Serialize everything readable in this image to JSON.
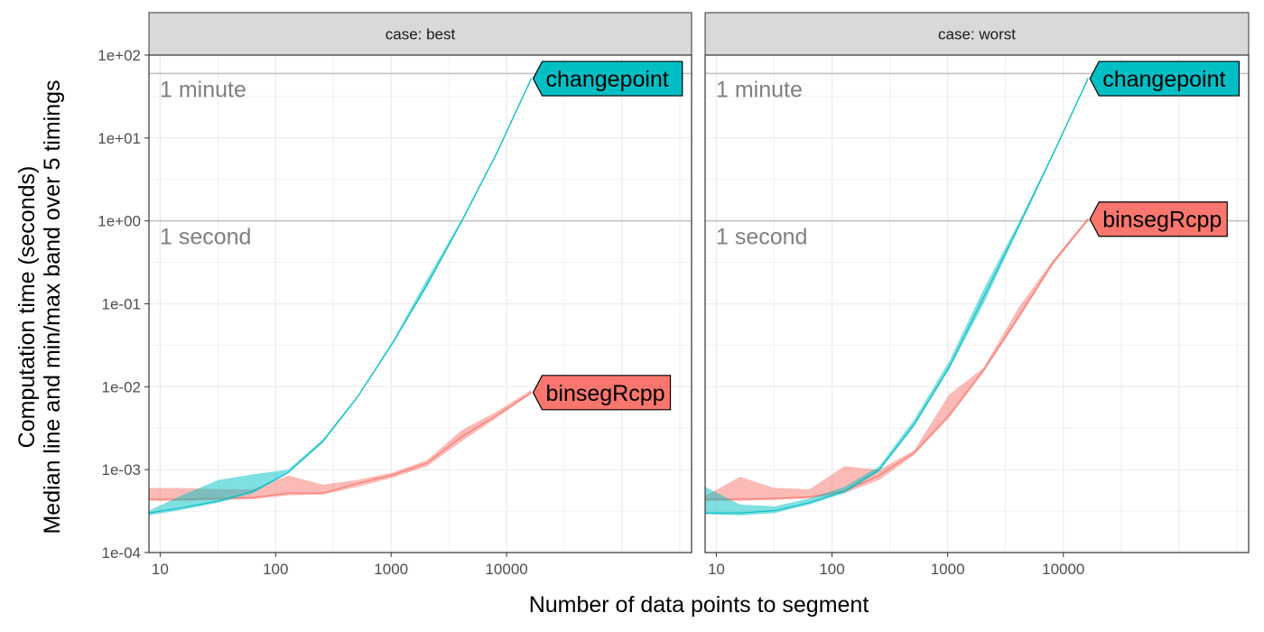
{
  "chart_data": {
    "type": "line",
    "x_scale": "log",
    "y_scale": "log",
    "xlabel": "Number of data points to segment",
    "ylabel_lines": [
      "Computation time (seconds)",
      "Median line and min/max band over 5 timings"
    ],
    "x_ticks": [
      {
        "value": 10,
        "label": "10"
      },
      {
        "value": 100,
        "label": "100"
      },
      {
        "value": 1000,
        "label": "1000"
      },
      {
        "value": 10000,
        "label": "10000"
      }
    ],
    "y_ticks": [
      {
        "value": 0.0001,
        "label": "1e-04"
      },
      {
        "value": 0.001,
        "label": "1e-03"
      },
      {
        "value": 0.01,
        "label": "1e-02"
      },
      {
        "value": 0.1,
        "label": "1e-01"
      },
      {
        "value": 1,
        "label": "1e+00"
      },
      {
        "value": 10,
        "label": "1e+01"
      },
      {
        "value": 100,
        "label": "1e+02"
      }
    ],
    "xlim": [
      8,
      400000
    ],
    "ylim": [
      0.0001,
      100
    ],
    "reference_lines": [
      {
        "value": 60,
        "label": "1 minute"
      },
      {
        "value": 1,
        "label": "1 second"
      }
    ],
    "grid": true,
    "colors": {
      "changepoint": "#00BFC4",
      "binsegRcpp": "#F8766D"
    },
    "panels": [
      {
        "strip_label": "case: best",
        "series": [
          {
            "name": "binsegRcpp",
            "x": [
              8,
              16,
              32,
              64,
              128,
              256,
              512,
              1024,
              2048,
              4096,
              8192,
              16384
            ],
            "median": [
              0.00044,
              0.00044,
              0.00045,
              0.00046,
              0.00052,
              0.00052,
              0.00068,
              0.00086,
              0.0012,
              0.0025,
              0.0045,
              0.0085
            ],
            "min": [
              0.00042,
              0.00042,
              0.00043,
              0.00044,
              0.00049,
              0.0005,
              0.00062,
              0.0008,
              0.0011,
              0.0022,
              0.0042,
              0.0082
            ],
            "max": [
              0.0006,
              0.0006,
              0.00058,
              0.00058,
              0.00085,
              0.00066,
              0.00075,
              0.00092,
              0.0013,
              0.003,
              0.005,
              0.0092
            ]
          },
          {
            "name": "changepoint",
            "x": [
              8,
              16,
              32,
              64,
              128,
              256,
              512,
              1024,
              2048,
              4096,
              8192,
              16384
            ],
            "median": [
              0.0003,
              0.00035,
              0.00042,
              0.00055,
              0.00092,
              0.0022,
              0.0075,
              0.033,
              0.17,
              1,
              6.5,
              52
            ],
            "min": [
              0.00028,
              0.00033,
              0.0004,
              0.00052,
              0.0009,
              0.0021,
              0.0073,
              0.032,
              0.16,
              0.95,
              6.2,
              50
            ],
            "max": [
              0.00032,
              0.0005,
              0.00075,
              0.00088,
              0.001,
              0.0023,
              0.0078,
              0.035,
              0.2,
              1.05,
              6.8,
              55
            ]
          }
        ]
      },
      {
        "strip_label": "case: worst",
        "series": [
          {
            "name": "binsegRcpp",
            "x": [
              8,
              16,
              32,
              64,
              128,
              256,
              512,
              1024,
              2048,
              4096,
              8192,
              16384
            ],
            "median": [
              0.00044,
              0.00044,
              0.00045,
              0.00047,
              0.00055,
              0.00085,
              0.0016,
              0.0045,
              0.016,
              0.07,
              0.32,
              1.05
            ],
            "min": [
              0.00042,
              0.00042,
              0.00043,
              0.00045,
              0.00052,
              0.00075,
              0.0015,
              0.0042,
              0.015,
              0.065,
              0.3,
              1.0
            ],
            "max": [
              0.00048,
              0.00082,
              0.0006,
              0.00058,
              0.0011,
              0.001,
              0.0017,
              0.008,
              0.017,
              0.09,
              0.34,
              1.1
            ]
          },
          {
            "name": "changepoint",
            "x": [
              8,
              16,
              32,
              64,
              128,
              256,
              512,
              1024,
              2048,
              4096,
              8192,
              16384
            ],
            "median": [
              0.0003,
              0.0003,
              0.00032,
              0.0004,
              0.00055,
              0.001,
              0.0035,
              0.017,
              0.12,
              0.85,
              6.5,
              52
            ],
            "min": [
              0.00029,
              0.00028,
              0.0003,
              0.00038,
              0.00052,
              0.00095,
              0.0033,
              0.016,
              0.1,
              0.8,
              6.2,
              50
            ],
            "max": [
              0.00062,
              0.00038,
              0.00036,
              0.00045,
              0.00062,
              0.0011,
              0.004,
              0.02,
              0.15,
              0.95,
              6.8,
              55
            ]
          }
        ]
      }
    ]
  }
}
